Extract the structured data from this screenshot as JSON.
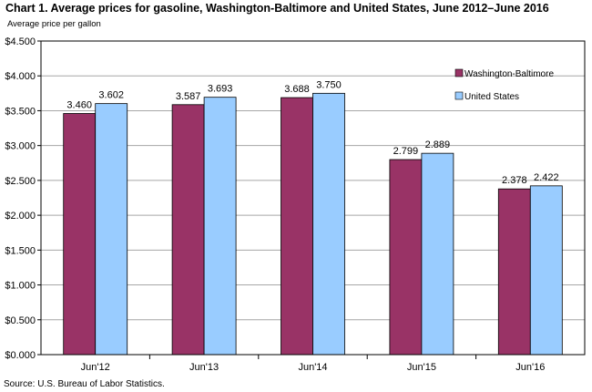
{
  "header": {
    "title": "Chart 1. Average prices for gasoline, Washington-Baltimore and United States, June 2012–June 2016",
    "ylabel": "Average price per gallon"
  },
  "footer": {
    "source": "Source: U.S. Bureau of Labor Statistics."
  },
  "chart_data": {
    "type": "bar",
    "categories": [
      "Jun'12",
      "Jun'13",
      "Jun'14",
      "Jun'15",
      "Jun'16"
    ],
    "series": [
      {
        "name": "Washington-Baltimore",
        "values": [
          3.46,
          3.587,
          3.688,
          2.799,
          2.378
        ],
        "labels": [
          "3.460",
          "3.587",
          "3.688",
          "2.799",
          "2.378"
        ],
        "color": "#993366"
      },
      {
        "name": "United States",
        "values": [
          3.602,
          3.693,
          3.75,
          2.889,
          2.422
        ],
        "labels": [
          "3.602",
          "3.693",
          "3.750",
          "2.889",
          "2.422"
        ],
        "color": "#99ccff"
      }
    ],
    "ylim": [
      0,
      4.5
    ],
    "yticks": [
      0,
      0.5,
      1.0,
      1.5,
      2.0,
      2.5,
      3.0,
      3.5,
      4.0,
      4.5
    ],
    "ytick_labels": [
      "$0.000",
      "$0.500",
      "$1.000",
      "$1.500",
      "$2.000",
      "$2.500",
      "$3.000",
      "$3.500",
      "$4.000",
      "$4.500"
    ],
    "grid": true,
    "legend_position": "right"
  }
}
